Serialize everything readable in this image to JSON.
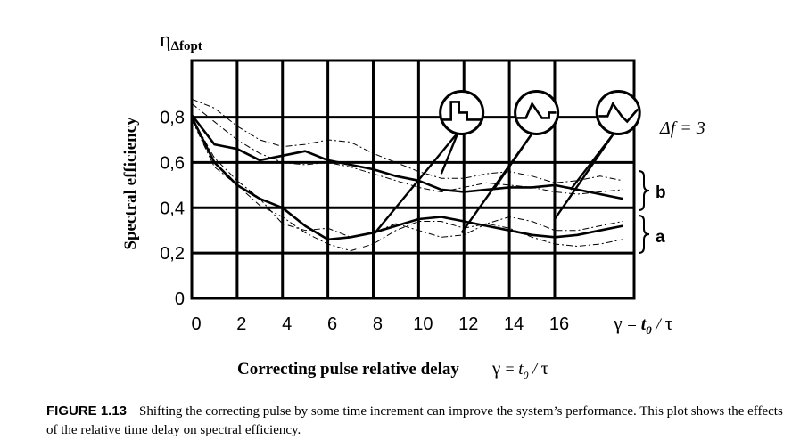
{
  "chart_data": {
    "type": "line",
    "y_symbol": "η",
    "y_symbol_sub": "Δfopt",
    "ylabel": "Spectral efficiency",
    "xlabel": "Correcting pulse relative delay",
    "axis_formula": {
      "gamma": "γ",
      "eq": "= ",
      "t0": "t",
      "t0_sub": "0",
      "slash": " / ",
      "tau": "τ"
    },
    "x_ticks": [
      "0",
      "2",
      "4",
      "6",
      "8",
      "10",
      "12",
      "14",
      "16"
    ],
    "y_ticks": [
      "0",
      "0,2",
      "0,4",
      "0,6",
      "0,8"
    ],
    "xlim": [
      0,
      19.5
    ],
    "ylim": [
      0,
      1.05
    ],
    "grid": true,
    "delta_f_label": "Δf = 3",
    "bracket_b_label": "b",
    "bracket_a_label": "a",
    "series": [
      {
        "style": "solid",
        "x": [
          0,
          1,
          2,
          3,
          4,
          5,
          6,
          7,
          8,
          9,
          10,
          11,
          12,
          13,
          14,
          15,
          16,
          17,
          18,
          19
        ],
        "y": [
          0.81,
          0.68,
          0.66,
          0.61,
          0.63,
          0.65,
          0.61,
          0.59,
          0.57,
          0.54,
          0.52,
          0.48,
          0.47,
          0.48,
          0.49,
          0.49,
          0.5,
          0.48,
          0.46,
          0.44
        ]
      },
      {
        "style": "solid",
        "x": [
          0,
          1,
          2,
          3,
          4,
          5,
          6,
          7,
          8,
          9,
          10,
          11,
          12,
          13,
          14,
          15,
          16,
          17,
          18,
          19
        ],
        "y": [
          0.8,
          0.6,
          0.5,
          0.44,
          0.4,
          0.32,
          0.26,
          0.27,
          0.29,
          0.32,
          0.35,
          0.36,
          0.34,
          0.32,
          0.3,
          0.28,
          0.27,
          0.28,
          0.3,
          0.32
        ]
      },
      {
        "style": "dashdot",
        "x": [
          0,
          1,
          2,
          3,
          4,
          5,
          6,
          7,
          8,
          9,
          10,
          11,
          12,
          13,
          14,
          15,
          16,
          17,
          18,
          19
        ],
        "y": [
          0.88,
          0.84,
          0.76,
          0.7,
          0.67,
          0.68,
          0.7,
          0.69,
          0.64,
          0.6,
          0.56,
          0.53,
          0.53,
          0.55,
          0.56,
          0.54,
          0.51,
          0.52,
          0.54,
          0.52
        ]
      },
      {
        "style": "dashdot",
        "x": [
          0,
          1,
          2,
          3,
          4,
          5,
          6,
          7,
          8,
          9,
          10,
          11,
          12,
          13,
          14,
          15,
          16,
          17,
          18,
          19
        ],
        "y": [
          0.86,
          0.78,
          0.7,
          0.64,
          0.6,
          0.59,
          0.6,
          0.58,
          0.55,
          0.52,
          0.49,
          0.47,
          0.49,
          0.51,
          0.5,
          0.49,
          0.47,
          0.46,
          0.47,
          0.48
        ]
      },
      {
        "style": "dashdot",
        "x": [
          0,
          1,
          2,
          3,
          4,
          5,
          6,
          7,
          8,
          9,
          10,
          11,
          12,
          13,
          14,
          15,
          16,
          17,
          18,
          19
        ],
        "y": [
          0.8,
          0.62,
          0.52,
          0.44,
          0.33,
          0.3,
          0.31,
          0.27,
          0.29,
          0.33,
          0.3,
          0.27,
          0.28,
          0.33,
          0.36,
          0.34,
          0.3,
          0.3,
          0.32,
          0.34
        ]
      },
      {
        "style": "dashdot",
        "x": [
          0,
          1,
          2,
          3,
          4,
          5,
          6,
          7,
          8,
          9,
          10,
          11,
          12,
          13,
          14,
          15,
          16,
          17,
          18,
          19
        ],
        "y": [
          0.79,
          0.58,
          0.5,
          0.41,
          0.36,
          0.29,
          0.24,
          0.21,
          0.24,
          0.3,
          0.34,
          0.34,
          0.31,
          0.33,
          0.31,
          0.27,
          0.24,
          0.23,
          0.24,
          0.26
        ]
      }
    ],
    "insets": [
      {
        "waveform": "two-step",
        "center_x": 11.9,
        "center_y": 0.82,
        "pointers": [
          [
            8.0,
            0.28
          ],
          [
            11.0,
            0.55
          ]
        ]
      },
      {
        "waveform": "triangle-step",
        "center_x": 15.2,
        "center_y": 0.82,
        "pointers": [
          [
            11.9,
            0.29
          ],
          [
            13.3,
            0.48
          ]
        ]
      },
      {
        "waveform": "triangle-dip",
        "center_x": 18.8,
        "center_y": 0.82,
        "pointers": [
          [
            16.0,
            0.35
          ],
          [
            16.7,
            0.48
          ]
        ]
      }
    ]
  },
  "caption": {
    "label": "FIGURE 1.13",
    "text": "Shifting the correcting pulse by some time increment can improve the system’s performance. This plot shows the effects of the relative time delay on spectral efficiency."
  }
}
